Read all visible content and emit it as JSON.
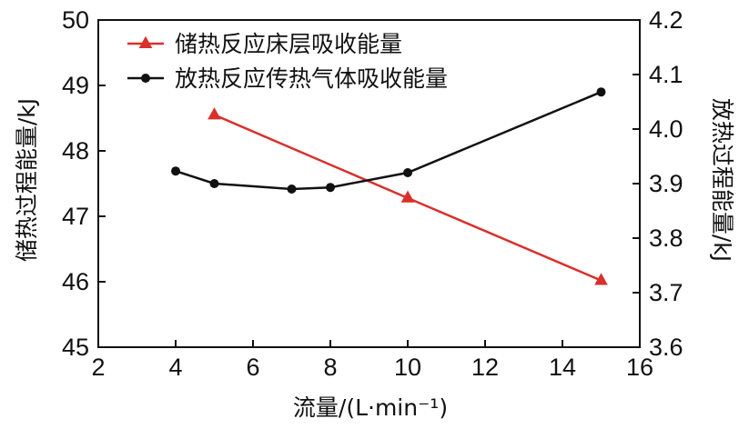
{
  "chart_data": {
    "type": "line",
    "xlabel": "流量/(L·min⁻¹)",
    "ylabel_left": "储热过程能量/kJ",
    "ylabel_right": "放热过程能量/kJ",
    "xlim": [
      2,
      16
    ],
    "xticks": [
      "2",
      "4",
      "6",
      "8",
      "10",
      "12",
      "14",
      "16"
    ],
    "ylim_left": [
      45,
      50
    ],
    "yticks_left": [
      "45",
      "46",
      "47",
      "48",
      "49",
      "50"
    ],
    "ylim_right": [
      3.6,
      4.2
    ],
    "yticks_right": [
      "3.6",
      "3.7",
      "3.8",
      "3.9",
      "4.0",
      "4.1",
      "4.2"
    ],
    "legend_position": "top-left",
    "grid": false,
    "series": [
      {
        "name": "储热反应床层吸收能量",
        "axis": "left",
        "marker": "triangle",
        "color": "#d9302b",
        "x": [
          5,
          10,
          15
        ],
        "y": [
          48.55,
          47.28,
          46.02
        ]
      },
      {
        "name": "放热反应传热气体吸收能量",
        "axis": "right",
        "marker": "circle",
        "color": "#111111",
        "x": [
          4,
          5,
          7,
          8,
          10,
          15
        ],
        "y": [
          3.923,
          3.9,
          3.89,
          3.893,
          3.92,
          4.068
        ]
      }
    ]
  }
}
